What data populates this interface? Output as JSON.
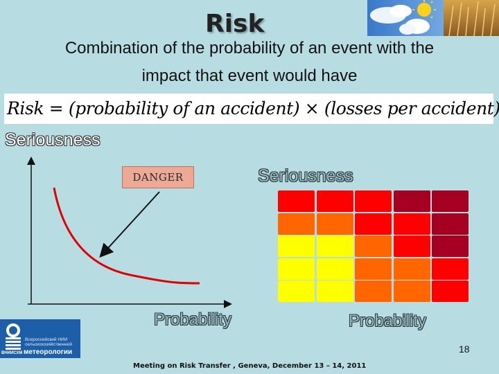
{
  "slide": {
    "title": "Risk",
    "subtitle_line1": "Combination of the probability of an event with the",
    "subtitle_line2": "impact that event would have",
    "formula": "Risk = (probability of an accident) × (losses per accident)",
    "axis_label_seriousness_left": "Seriousness",
    "axis_label_seriousness_right": "Seriousness",
    "danger_label": "DANGER",
    "axis_label_probability_left": "Probability",
    "axis_label_probability_right": "Probability",
    "page_number": "18",
    "footer": "Meeting on Risk Transfer , Geneva, December 13 – 14, 2011"
  },
  "logo": {
    "text_line1": "Всероссийский НИИ",
    "text_line2": "сельскохозяйственной",
    "text_big": "метеорологии",
    "text_small": "ВНИИСХМ"
  },
  "risk_matrix": {
    "colors": {
      "yellow": "#ffff00",
      "orange": "#ff6600",
      "red": "#ff0000",
      "dark_red": "#a50021"
    },
    "rows": [
      [
        "red",
        "red",
        "red",
        "dark_red",
        "dark_red"
      ],
      [
        "orange",
        "orange",
        "red",
        "red",
        "dark_red"
      ],
      [
        "yellow",
        "yellow",
        "orange",
        "red",
        "dark_red"
      ],
      [
        "yellow",
        "yellow",
        "orange",
        "orange",
        "red"
      ],
      [
        "yellow",
        "yellow",
        "orange",
        "orange",
        "red"
      ]
    ]
  }
}
